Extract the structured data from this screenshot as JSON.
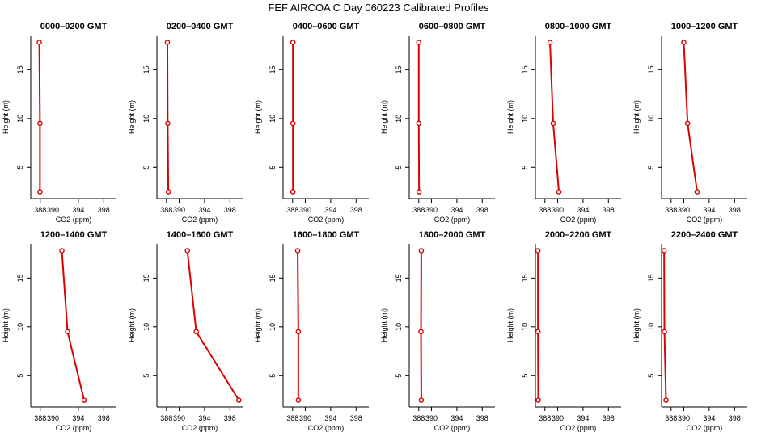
{
  "title": "FEF AIRCOA C  Day 060223  Calibrated Profiles",
  "colors": {
    "series": "#dd0000",
    "axis": "#000000",
    "background": "#ffffff"
  },
  "chart_data": [
    {
      "type": "line",
      "title": "0000–0200 GMT",
      "xlabel": "CO2 (ppm)",
      "ylabel": "Height (m)",
      "xlim": [
        386.5,
        400
      ],
      "ylim": [
        1.8,
        18.5
      ],
      "xticks": [
        "388",
        "390",
        "394",
        "398"
      ],
      "xtick_values": [
        388,
        390,
        394,
        398
      ],
      "yticks": [
        "5",
        "10",
        "15"
      ],
      "ytick_values": [
        5,
        10,
        15
      ],
      "x": [
        387.85,
        387.95,
        387.95
      ],
      "y": [
        17.8,
        9.5,
        2.5
      ]
    },
    {
      "type": "line",
      "title": "0200–0400 GMT",
      "xlabel": "CO2 (ppm)",
      "ylabel": "Height (m)",
      "xlim": [
        386.5,
        400
      ],
      "ylim": [
        1.8,
        18.5
      ],
      "xticks": [
        "388",
        "390",
        "394",
        "398"
      ],
      "xtick_values": [
        388,
        390,
        394,
        398
      ],
      "yticks": [
        "5",
        "10",
        "15"
      ],
      "ytick_values": [
        5,
        10,
        15
      ],
      "x": [
        388.15,
        388.2,
        388.3
      ],
      "y": [
        17.8,
        9.5,
        2.5
      ]
    },
    {
      "type": "line",
      "title": "0400–0600 GMT",
      "xlabel": "CO2 (ppm)",
      "ylabel": "Height (m)",
      "xlim": [
        386.5,
        400
      ],
      "ylim": [
        1.8,
        18.5
      ],
      "xticks": [
        "388",
        "390",
        "394",
        "398"
      ],
      "xtick_values": [
        388,
        390,
        394,
        398
      ],
      "yticks": [
        "5",
        "10",
        "15"
      ],
      "ytick_values": [
        5,
        10,
        15
      ],
      "x": [
        388.05,
        388.05,
        388.05
      ],
      "y": [
        17.8,
        9.5,
        2.5
      ]
    },
    {
      "type": "line",
      "title": "0600–0800 GMT",
      "xlabel": "CO2 (ppm)",
      "ylabel": "Height (m)",
      "xlim": [
        386.5,
        400
      ],
      "ylim": [
        1.8,
        18.5
      ],
      "xticks": [
        "388",
        "390",
        "394",
        "398"
      ],
      "xtick_values": [
        388,
        390,
        394,
        398
      ],
      "yticks": [
        "5",
        "10",
        "15"
      ],
      "ytick_values": [
        5,
        10,
        15
      ],
      "x": [
        388.0,
        388.0,
        388.05
      ],
      "y": [
        17.8,
        9.5,
        2.5
      ]
    },
    {
      "type": "line",
      "title": "0800–1000 GMT",
      "xlabel": "CO2 (ppm)",
      "ylabel": "Height (m)",
      "xlim": [
        386.5,
        400
      ],
      "ylim": [
        1.8,
        18.5
      ],
      "xticks": [
        "388",
        "390",
        "394",
        "398"
      ],
      "xtick_values": [
        388,
        390,
        394,
        398
      ],
      "yticks": [
        "5",
        "10",
        "15"
      ],
      "ytick_values": [
        5,
        10,
        15
      ],
      "x": [
        388.8,
        389.3,
        390.2
      ],
      "y": [
        17.8,
        9.5,
        2.5
      ]
    },
    {
      "type": "line",
      "title": "1000–1200 GMT",
      "xlabel": "CO2 (ppm)",
      "ylabel": "Height (m)",
      "xlim": [
        386.5,
        400
      ],
      "ylim": [
        1.8,
        18.5
      ],
      "xticks": [
        "388",
        "390",
        "394",
        "398"
      ],
      "xtick_values": [
        388,
        390,
        394,
        398
      ],
      "yticks": [
        "5",
        "10",
        "15"
      ],
      "ytick_values": [
        5,
        10,
        15
      ],
      "x": [
        390.0,
        390.6,
        392.1
      ],
      "y": [
        17.8,
        9.5,
        2.5
      ]
    },
    {
      "type": "line",
      "title": "1200–1400 GMT",
      "xlabel": "CO2 (ppm)",
      "ylabel": "Height (m)",
      "xlim": [
        386.5,
        400
      ],
      "ylim": [
        1.8,
        18.5
      ],
      "xticks": [
        "388",
        "390",
        "394",
        "398"
      ],
      "xtick_values": [
        388,
        390,
        394,
        398
      ],
      "yticks": [
        "5",
        "10",
        "15"
      ],
      "ytick_values": [
        5,
        10,
        15
      ],
      "x": [
        391.4,
        392.3,
        394.9
      ],
      "y": [
        17.8,
        9.5,
        2.5
      ]
    },
    {
      "type": "line",
      "title": "1400–1600 GMT",
      "xlabel": "CO2 (ppm)",
      "ylabel": "Height (m)",
      "xlim": [
        386.5,
        400
      ],
      "ylim": [
        1.8,
        18.5
      ],
      "xticks": [
        "388",
        "390",
        "394",
        "398"
      ],
      "xtick_values": [
        388,
        390,
        394,
        398
      ],
      "yticks": [
        "5",
        "10",
        "15"
      ],
      "ytick_values": [
        5,
        10,
        15
      ],
      "x": [
        391.3,
        392.7,
        399.4
      ],
      "y": [
        17.8,
        9.5,
        2.5
      ]
    },
    {
      "type": "line",
      "title": "1600–1800 GMT",
      "xlabel": "CO2 (ppm)",
      "ylabel": "Height (m)",
      "xlim": [
        386.5,
        400
      ],
      "ylim": [
        1.8,
        18.5
      ],
      "xticks": [
        "388",
        "390",
        "394",
        "398"
      ],
      "xtick_values": [
        388,
        390,
        394,
        398
      ],
      "yticks": [
        "5",
        "10",
        "15"
      ],
      "ytick_values": [
        5,
        10,
        15
      ],
      "x": [
        388.8,
        388.9,
        388.9
      ],
      "y": [
        17.8,
        9.5,
        2.5
      ]
    },
    {
      "type": "line",
      "title": "1800–2000 GMT",
      "xlabel": "CO2 (ppm)",
      "ylabel": "Height (m)",
      "xlim": [
        386.5,
        400
      ],
      "ylim": [
        1.8,
        18.5
      ],
      "xticks": [
        "388",
        "390",
        "394",
        "398"
      ],
      "xtick_values": [
        388,
        390,
        394,
        398
      ],
      "yticks": [
        "5",
        "10",
        "15"
      ],
      "ytick_values": [
        5,
        10,
        15
      ],
      "x": [
        388.4,
        388.35,
        388.4
      ],
      "y": [
        17.8,
        9.5,
        2.5
      ]
    },
    {
      "type": "line",
      "title": "2000–2200 GMT",
      "xlabel": "CO2 (ppm)",
      "ylabel": "Height (m)",
      "xlim": [
        386.5,
        400
      ],
      "ylim": [
        1.8,
        18.5
      ],
      "xticks": [
        "388",
        "390",
        "394",
        "398"
      ],
      "xtick_values": [
        388,
        390,
        394,
        398
      ],
      "yticks": [
        "5",
        "10",
        "15"
      ],
      "ytick_values": [
        5,
        10,
        15
      ],
      "x": [
        386.9,
        386.9,
        386.95
      ],
      "y": [
        17.8,
        9.5,
        2.5
      ]
    },
    {
      "type": "line",
      "title": "2200–2400 GMT",
      "xlabel": "CO2 (ppm)",
      "ylabel": "Height (m)",
      "xlim": [
        386.5,
        400
      ],
      "ylim": [
        1.8,
        18.5
      ],
      "xticks": [
        "388",
        "390",
        "394",
        "398"
      ],
      "xtick_values": [
        388,
        390,
        394,
        398
      ],
      "yticks": [
        "5",
        "10",
        "15"
      ],
      "ytick_values": [
        5,
        10,
        15
      ],
      "x": [
        386.9,
        386.95,
        387.2
      ],
      "y": [
        17.8,
        9.5,
        2.5
      ]
    }
  ]
}
